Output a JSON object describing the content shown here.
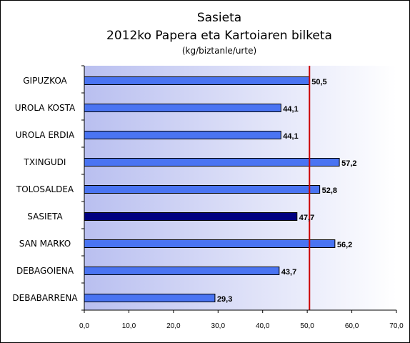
{
  "chart_data": {
    "type": "bar",
    "orientation": "horizontal",
    "title": "Sasieta",
    "subtitle": "2012ko Papera eta Kartoiaren bilketa",
    "unit_label": "(kg/biztanle/urte)",
    "categories": [
      "GIPUZKOA",
      "UROLA KOSTA",
      "UROLA ERDIA",
      "TXINGUDI",
      "TOLOSALDEA",
      "SASIETA",
      "SAN MARKO",
      "DEBAGOIENA",
      "DEBABARRENA"
    ],
    "values": [
      50.5,
      44.1,
      44.1,
      57.2,
      52.8,
      47.7,
      56.2,
      43.7,
      29.3
    ],
    "value_labels": [
      "50,5",
      "44,1",
      "44,1",
      "57,2",
      "52,8",
      "47,7",
      "56,2",
      "43,7",
      "29,3"
    ],
    "highlight_category": "SASIETA",
    "reference_line": 50.5,
    "xlim": [
      0,
      70
    ],
    "xticks": [
      0,
      10,
      20,
      30,
      40,
      50,
      60,
      70
    ],
    "xtick_labels": [
      "0,0",
      "10,0",
      "20,0",
      "30,0",
      "40,0",
      "50,0",
      "60,0",
      "70,0"
    ],
    "grid": false,
    "colors": {
      "bar": "#4a74f2",
      "bar_highlight": "#000080",
      "reference_line": "#cc0000",
      "plot_gradient_start": "#b9bff0",
      "plot_gradient_end": "#ffffff"
    }
  }
}
